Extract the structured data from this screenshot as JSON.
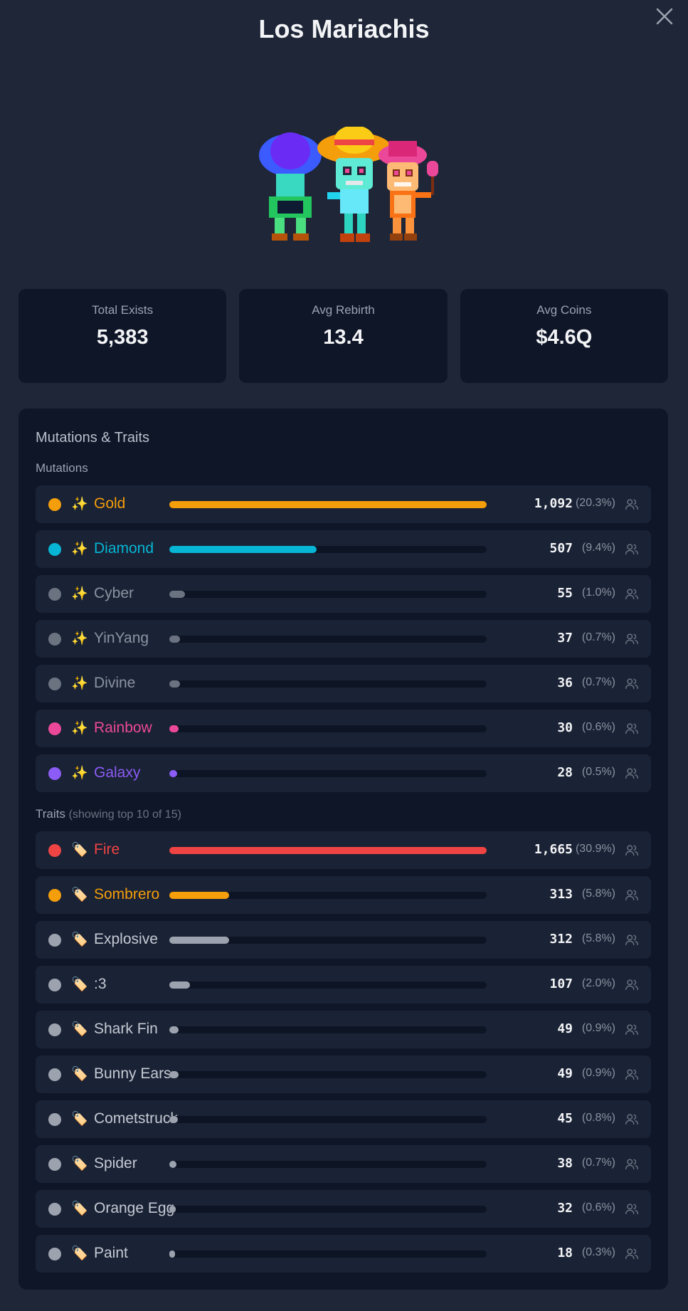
{
  "header": {
    "title": "Los Mariachis"
  },
  "stats": [
    {
      "label": "Total Exists",
      "value": "5,383"
    },
    {
      "label": "Avg Rebirth",
      "value": "13.4"
    },
    {
      "label": "Avg Coins",
      "value": "$4.6Q"
    }
  ],
  "panel": {
    "title": "Mutations & Traits",
    "mutations_label": "Mutations",
    "traits_label": "Traits",
    "traits_sub": "(showing top 10 of 15)"
  },
  "mutations": [
    {
      "name": "Gold",
      "count": "1,092",
      "pct": "(20.3%)",
      "percent": 20.3,
      "color": "#f59e0b",
      "label_color": "#f59e0b",
      "icon": "sparkles-icon"
    },
    {
      "name": "Diamond",
      "count": "507",
      "pct": "(9.4%)",
      "percent": 9.4,
      "color": "#06b6d4",
      "label_color": "#06b6d4",
      "icon": "sparkles-icon"
    },
    {
      "name": "Cyber",
      "count": "55",
      "pct": "(1.0%)",
      "percent": 1.0,
      "color": "#6b7280",
      "label_color": "#8b93a1",
      "icon": "sparkles-icon"
    },
    {
      "name": "YinYang",
      "count": "37",
      "pct": "(0.7%)",
      "percent": 0.7,
      "color": "#6b7280",
      "label_color": "#8b93a1",
      "icon": "sparkles-icon"
    },
    {
      "name": "Divine",
      "count": "36",
      "pct": "(0.7%)",
      "percent": 0.7,
      "color": "#6b7280",
      "label_color": "#8b93a1",
      "icon": "sparkles-icon"
    },
    {
      "name": "Rainbow",
      "count": "30",
      "pct": "(0.6%)",
      "percent": 0.6,
      "color": "#ec4899",
      "label_color": "#ec4899",
      "icon": "sparkles-icon"
    },
    {
      "name": "Galaxy",
      "count": "28",
      "pct": "(0.5%)",
      "percent": 0.5,
      "color": "#8b5cf6",
      "label_color": "#8b5cf6",
      "icon": "sparkles-icon"
    }
  ],
  "traits": [
    {
      "name": "Fire",
      "count": "1,665",
      "pct": "(30.9%)",
      "percent": 30.9,
      "color": "#ef4444",
      "label_color": "#ef4444",
      "icon": "tag-icon"
    },
    {
      "name": "Sombrero",
      "count": "313",
      "pct": "(5.8%)",
      "percent": 5.8,
      "color": "#f59e0b",
      "label_color": "#f59e0b",
      "icon": "tag-icon"
    },
    {
      "name": "Explosive",
      "count": "312",
      "pct": "(5.8%)",
      "percent": 5.8,
      "color": "#9ca3af",
      "label_color": "#c5cad3",
      "icon": "tag-icon"
    },
    {
      "name": ":3",
      "count": "107",
      "pct": "(2.0%)",
      "percent": 2.0,
      "color": "#9ca3af",
      "label_color": "#c5cad3",
      "icon": "tag-icon"
    },
    {
      "name": "Shark Fin",
      "count": "49",
      "pct": "(0.9%)",
      "percent": 0.9,
      "color": "#9ca3af",
      "label_color": "#c5cad3",
      "icon": "tag-icon"
    },
    {
      "name": "Bunny Ears",
      "count": "49",
      "pct": "(0.9%)",
      "percent": 0.9,
      "color": "#9ca3af",
      "label_color": "#c5cad3",
      "icon": "tag-icon"
    },
    {
      "name": "Cometstruck",
      "count": "45",
      "pct": "(0.8%)",
      "percent": 0.8,
      "color": "#9ca3af",
      "label_color": "#c5cad3",
      "icon": "tag-icon"
    },
    {
      "name": "Spider",
      "count": "38",
      "pct": "(0.7%)",
      "percent": 0.7,
      "color": "#9ca3af",
      "label_color": "#c5cad3",
      "icon": "tag-icon"
    },
    {
      "name": "Orange Egg",
      "count": "32",
      "pct": "(0.6%)",
      "percent": 0.6,
      "color": "#9ca3af",
      "label_color": "#c5cad3",
      "icon": "tag-icon"
    },
    {
      "name": "Paint",
      "count": "18",
      "pct": "(0.3%)",
      "percent": 0.3,
      "color": "#9ca3af",
      "label_color": "#c5cad3",
      "icon": "tag-icon"
    }
  ]
}
